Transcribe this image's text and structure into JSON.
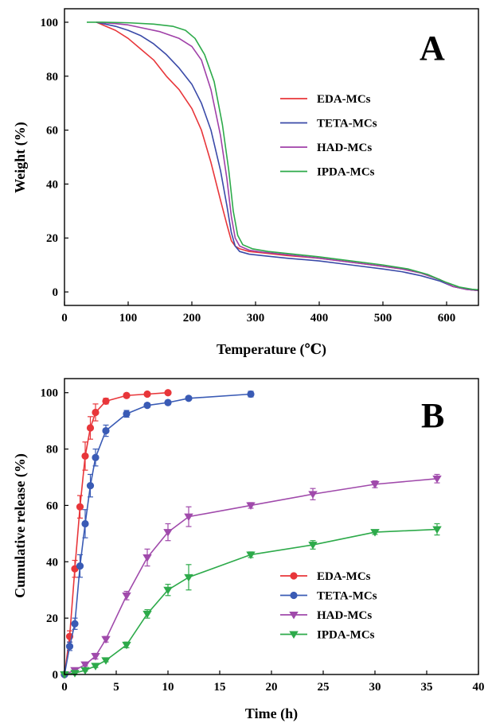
{
  "chart_data": [
    {
      "type": "line",
      "panel_label": "A",
      "xlabel": "Temperature (℃)",
      "ylabel": "Weight (%)",
      "xlim": [
        0,
        650
      ],
      "ylim": [
        -5,
        105
      ],
      "xticks": [
        0,
        100,
        200,
        300,
        400,
        500,
        600
      ],
      "yticks": [
        0,
        20,
        40,
        60,
        80,
        100
      ],
      "grid": false,
      "legend_position": "center-right",
      "series": [
        {
          "name": "EDA-MCs",
          "color": "#e8363a",
          "x": [
            50,
            80,
            100,
            120,
            140,
            160,
            180,
            200,
            215,
            230,
            245,
            255,
            262,
            268,
            275,
            290,
            310,
            350,
            400,
            450,
            500,
            530,
            560,
            590,
            610,
            630,
            650
          ],
          "y": [
            100,
            97,
            94,
            90,
            86,
            80,
            75,
            68,
            60,
            48,
            34,
            25,
            19,
            17,
            16,
            15,
            14.5,
            13.5,
            12.5,
            11,
            9.5,
            8.5,
            7,
            4.5,
            2,
            1,
            0.5
          ]
        },
        {
          "name": "TETA-MCs",
          "color": "#3a4aa8",
          "x": [
            50,
            80,
            100,
            120,
            140,
            160,
            180,
            200,
            215,
            230,
            245,
            255,
            262,
            268,
            275,
            290,
            310,
            350,
            400,
            450,
            500,
            530,
            560,
            590,
            610,
            630,
            650
          ],
          "y": [
            100,
            98.5,
            97,
            95,
            92,
            88,
            83,
            77,
            70,
            60,
            45,
            32,
            22,
            17,
            15,
            14,
            13.5,
            12.5,
            11.5,
            10,
            8.5,
            7.5,
            6,
            4,
            2,
            1,
            0.5
          ]
        },
        {
          "name": "HAD-MCs",
          "color": "#a040a8",
          "x": [
            50,
            80,
            100,
            120,
            150,
            180,
            200,
            215,
            230,
            245,
            255,
            262,
            268,
            275,
            290,
            310,
            350,
            400,
            450,
            500,
            530,
            560,
            590,
            610,
            630,
            650
          ],
          "y": [
            100,
            99.5,
            99,
            98,
            96.5,
            94,
            91,
            86,
            75,
            58,
            42,
            28,
            20,
            17,
            15.5,
            14.8,
            13.8,
            12.5,
            11,
            9.5,
            8.5,
            7,
            4.5,
            2,
            1,
            0.5
          ]
        },
        {
          "name": "IPDA-MCs",
          "color": "#2daa4a",
          "x": [
            35,
            60,
            100,
            140,
            170,
            190,
            205,
            220,
            235,
            248,
            258,
            265,
            272,
            280,
            295,
            320,
            360,
            400,
            450,
            500,
            540,
            570,
            600,
            620,
            640,
            650
          ],
          "y": [
            100,
            100,
            99.8,
            99.3,
            98.5,
            97,
            94,
            88,
            78,
            62,
            45,
            30,
            21,
            17.5,
            16,
            15,
            14,
            13,
            11.5,
            10,
            8.5,
            6.5,
            3.5,
            1.8,
            1,
            0.8
          ]
        }
      ]
    },
    {
      "type": "scatter",
      "panel_label": "B",
      "xlabel": "Time (h)",
      "ylabel": "Cumulative release (%)",
      "xlim": [
        0,
        40
      ],
      "ylim": [
        0,
        105
      ],
      "xticks": [
        0,
        5,
        10,
        15,
        20,
        25,
        30,
        35,
        40
      ],
      "yticks": [
        0,
        20,
        40,
        60,
        80,
        100
      ],
      "grid": false,
      "legend_position": "bottom-right",
      "series": [
        {
          "name": "EDA-MCs",
          "color": "#e8363a",
          "marker": "circle",
          "x": [
            0,
            0.5,
            1,
            1.5,
            2,
            2.5,
            3,
            4,
            6,
            8,
            10
          ],
          "y": [
            0,
            13.5,
            37.5,
            59.5,
            77.5,
            87.5,
            93,
            97,
            99,
            99.5,
            100
          ],
          "err": [
            0,
            2,
            3,
            4,
            5,
            4,
            3,
            1,
            0.8,
            0.5,
            0.5
          ]
        },
        {
          "name": "TETA-MCs",
          "color": "#3a5bb5",
          "marker": "circle",
          "x": [
            0,
            0.5,
            1,
            1.5,
            2,
            2.5,
            3,
            4,
            6,
            8,
            10,
            12,
            18
          ],
          "y": [
            0,
            10,
            18,
            38.5,
            53.5,
            67,
            77,
            86.5,
            92.5,
            95.5,
            96.5,
            98,
            99.5
          ],
          "err": [
            0,
            1.5,
            2,
            4,
            5,
            4,
            3,
            2,
            1.2,
            0.8,
            0.8,
            0.5,
            1
          ]
        },
        {
          "name": "HAD-MCs",
          "color": "#a04aab",
          "marker": "triangle-down",
          "x": [
            0,
            1,
            2,
            3,
            4,
            6,
            8,
            10,
            12,
            18,
            24,
            30,
            36
          ],
          "y": [
            0,
            1.5,
            3.5,
            6.5,
            12.5,
            28,
            41.5,
            50.5,
            56,
            60,
            64,
            67.5,
            69.5
          ],
          "err": [
            0,
            0.5,
            0.5,
            1,
            1,
            1.5,
            3,
            3,
            3.5,
            1,
            2,
            1.2,
            1.5
          ]
        },
        {
          "name": "IPDA-MCs",
          "color": "#2daa4a",
          "marker": "triangle-down",
          "x": [
            0,
            1,
            2,
            3,
            4,
            6,
            8,
            10,
            12,
            18,
            24,
            30,
            36
          ],
          "y": [
            0,
            0.5,
            1.5,
            3,
            5,
            10.5,
            21.5,
            30,
            34.5,
            42.5,
            46,
            50.5,
            51.5
          ],
          "err": [
            0,
            0.3,
            0.3,
            0.5,
            0.5,
            1,
            1.5,
            2,
            4.5,
            1,
            1.5,
            0.8,
            2
          ]
        }
      ]
    }
  ]
}
